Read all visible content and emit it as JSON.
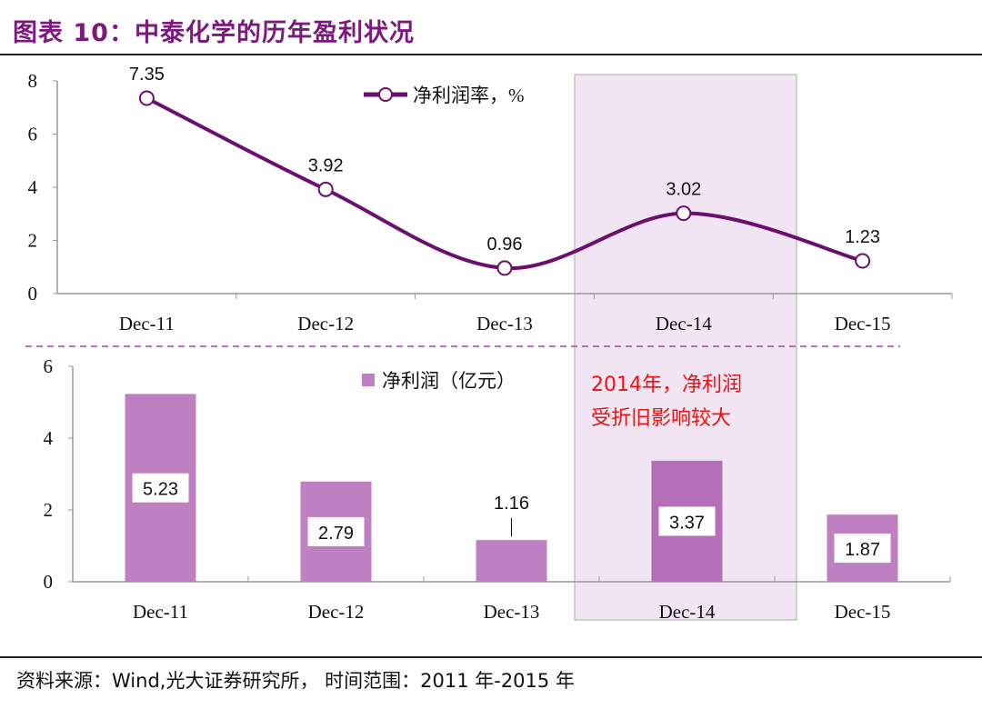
{
  "title": "图表 10：中泰化学的历年盈利状况",
  "source": "资料来源：Wind,光大证券研究所，   时间范围：2011 年-2015 年",
  "colors": {
    "line": "#6a0f6e",
    "bar": "#bf80c2",
    "bar_highlight": "#b46fb8",
    "highlight_band": "#f1e5f3",
    "annotation": "#ee1111",
    "title": "#7a1a7e",
    "divider": "#9b4f9b"
  },
  "chart_data": [
    {
      "type": "line",
      "categories": [
        "Dec-11",
        "Dec-12",
        "Dec-13",
        "Dec-14",
        "Dec-15"
      ],
      "series": [
        {
          "name": "净利润率，%",
          "values": [
            7.35,
            3.92,
            0.96,
            3.02,
            1.23
          ]
        }
      ],
      "ylim": [
        0,
        8
      ],
      "yticks": [
        0,
        2,
        4,
        6,
        8
      ],
      "smooth": true,
      "marker": "hollow-circle",
      "legend": "top-center",
      "highlight_category": "Dec-14"
    },
    {
      "type": "bar",
      "categories": [
        "Dec-11",
        "Dec-12",
        "Dec-13",
        "Dec-14",
        "Dec-15"
      ],
      "series": [
        {
          "name": "净利润（亿元）",
          "values": [
            5.23,
            2.79,
            1.16,
            3.37,
            1.87
          ]
        }
      ],
      "labels": [
        "5.23",
        "2.79",
        "1.16",
        "3.37",
        "1.87"
      ],
      "ylim": [
        0,
        6
      ],
      "yticks": [
        0,
        2,
        4,
        6
      ],
      "legend": "top-center",
      "annotation": [
        "2014年，净利润",
        "受折旧影响较大"
      ],
      "highlight_category": "Dec-14"
    }
  ]
}
